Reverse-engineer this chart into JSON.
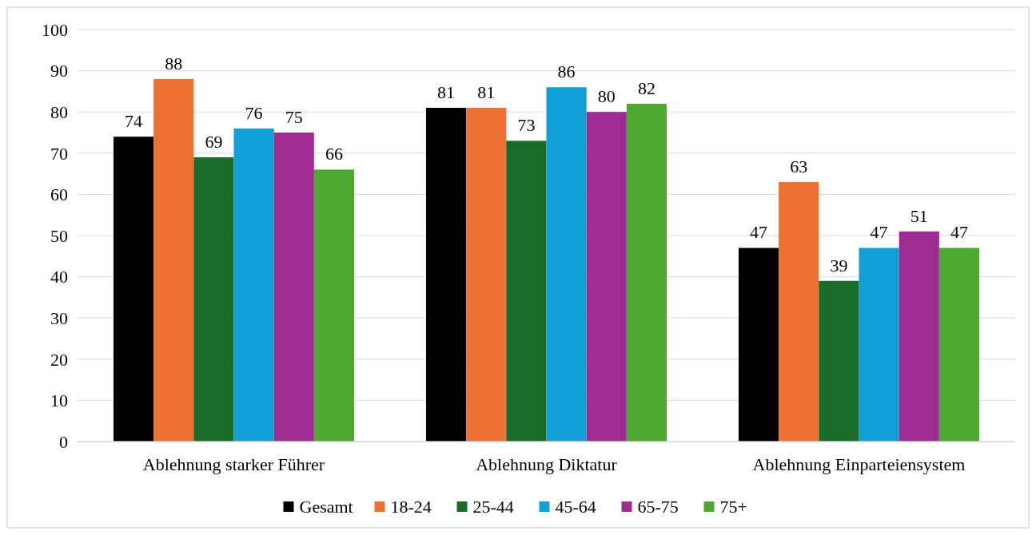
{
  "chart_data": {
    "type": "bar",
    "categories": [
      "Ablehnung starker Führer",
      "Ablehnung Diktatur",
      "Ablehnung Einparteiensystem"
    ],
    "series": [
      {
        "name": "Gesamt",
        "color": "#000000",
        "values": [
          74,
          81,
          47
        ]
      },
      {
        "name": "18-24",
        "color": "#ed7133",
        "values": [
          88,
          81,
          63
        ]
      },
      {
        "name": "25-44",
        "color": "#1a6b27",
        "values": [
          69,
          73,
          39
        ]
      },
      {
        "name": "45-64",
        "color": "#119fd8",
        "values": [
          76,
          86,
          47
        ]
      },
      {
        "name": "65-75",
        "color": "#9e2b92",
        "values": [
          75,
          80,
          51
        ]
      },
      {
        "name": "75+",
        "color": "#4ea72e",
        "values": [
          66,
          82,
          47
        ]
      }
    ],
    "ylim": [
      0,
      100
    ],
    "yticks": [
      0,
      10,
      20,
      30,
      40,
      50,
      60,
      70,
      80,
      90,
      100
    ],
    "grid": "y",
    "legend": "bottom",
    "data_labels": true
  }
}
